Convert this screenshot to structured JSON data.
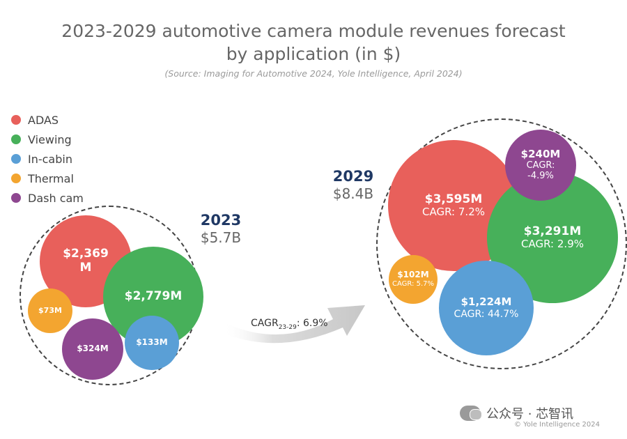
{
  "chart_data": {
    "type": "bubble",
    "title": "2023-2029 automotive camera module revenues forecast by application (in $)",
    "title_lines": [
      "2023-2029 automotive camera module revenues forecast",
      "by application (in $)"
    ],
    "source": "(Source: Imaging for Automotive 2024, Yole Intelligence, April 2024)",
    "legend": [
      {
        "name": "ADAS",
        "color": "#e8605b"
      },
      {
        "name": "Viewing",
        "color": "#47b05a"
      },
      {
        "name": "In-cabin",
        "color": "#5a9fd6"
      },
      {
        "name": "Thermal",
        "color": "#f3a530"
      },
      {
        "name": "Dash cam",
        "color": "#8e4790"
      }
    ],
    "groups": [
      {
        "year": "2023",
        "total": "$5.7B",
        "items": [
          {
            "category": "ADAS",
            "value": 2369,
            "label": "$2,369 M"
          },
          {
            "category": "Viewing",
            "value": 2779,
            "label": "$2,779M"
          },
          {
            "category": "In-cabin",
            "value": 133,
            "label": "$133M"
          },
          {
            "category": "Thermal",
            "value": 73,
            "label": "$73M"
          },
          {
            "category": "Dash cam",
            "value": 324,
            "label": "$324M"
          }
        ]
      },
      {
        "year": "2029",
        "total": "$8.4B",
        "items": [
          {
            "category": "ADAS",
            "value": 3595,
            "label": "$3,595M",
            "cagr": "CAGR: 7.2%"
          },
          {
            "category": "Viewing",
            "value": 3291,
            "label": "$3,291M",
            "cagr": "CAGR: 2.9%"
          },
          {
            "category": "In-cabin",
            "value": 1224,
            "label": "$1,224M",
            "cagr": "CAGR: 44.7%"
          },
          {
            "category": "Thermal",
            "value": 102,
            "label": "$102M",
            "cagr": "CAGR: 5.7%"
          },
          {
            "category": "Dash cam",
            "value": 240,
            "label": "$240M",
            "cagr": "CAGR: -4.9%"
          }
        ]
      }
    ],
    "overall_cagr": {
      "prefix": "CAGR",
      "sub": "23-29",
      "value": ": 6.9%"
    }
  },
  "watermark": "公众号 · 芯智讯",
  "copyright": "© Yole Intelligence 2024"
}
